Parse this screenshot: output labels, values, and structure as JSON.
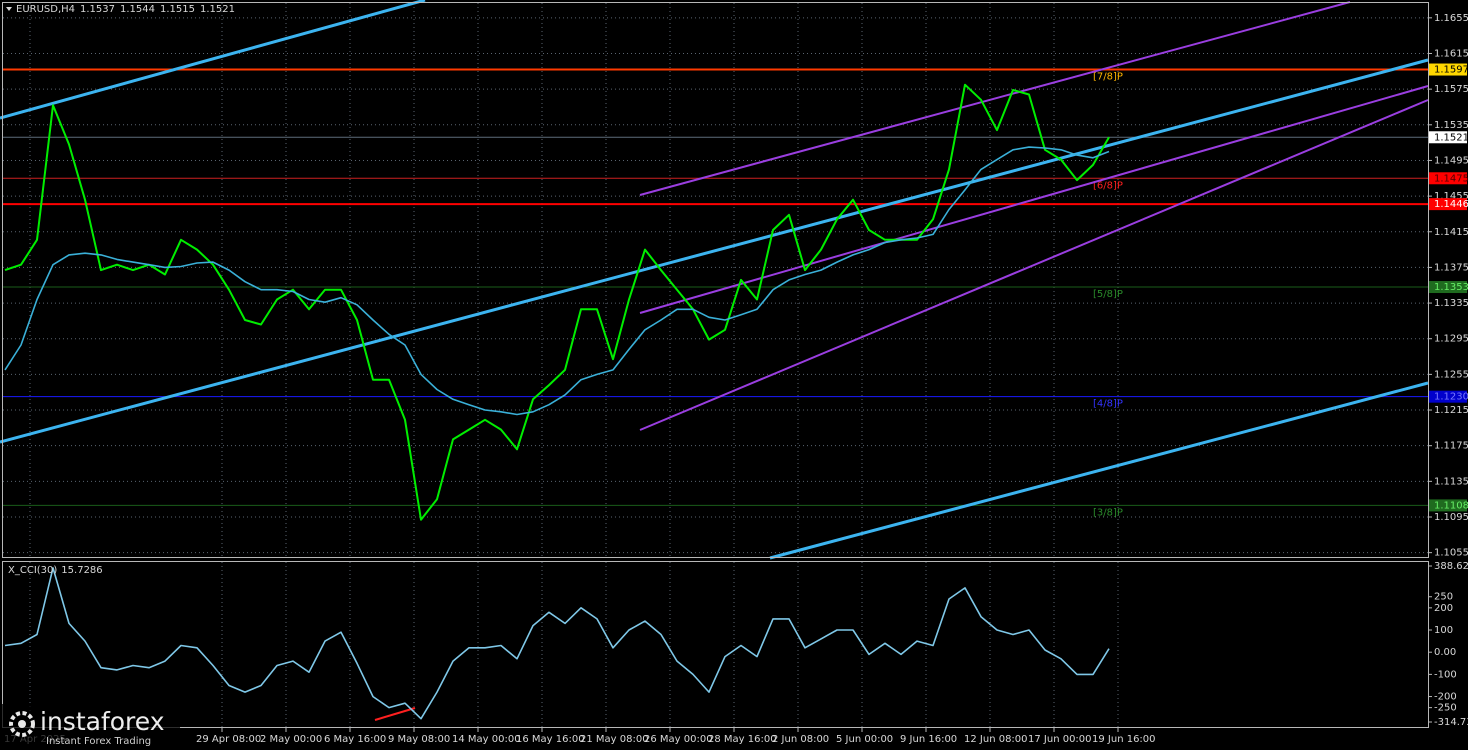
{
  "watermark": {
    "brand": "instaforex",
    "tagline": "Instant Forex Trading"
  },
  "chart_data": [
    {
      "type": "line",
      "title": "EURUSD,H4",
      "quote": [
        1.1537,
        1.1544,
        1.1515,
        1.1521
      ],
      "ylim": [
        1.1049,
        1.1675
      ],
      "yticks": [
        1.1655,
        1.1615,
        1.1575,
        1.1535,
        1.1495,
        1.1455,
        1.1415,
        1.1375,
        1.1335,
        1.1295,
        1.1255,
        1.1215,
        1.1175,
        1.1135,
        1.1095,
        1.1055
      ],
      "grid": true,
      "series": [
        {
          "color": "#00ee00",
          "values": [
            1.1372,
            1.1378,
            1.1406,
            1.1557,
            1.1513,
            1.1451,
            1.1372,
            1.1378,
            1.1372,
            1.1378,
            1.1367,
            1.1406,
            1.1395,
            1.1378,
            1.135,
            1.1316,
            1.1311,
            1.1339,
            1.135,
            1.1328,
            1.135,
            1.135,
            1.1316,
            1.1249,
            1.1249,
            1.1204,
            1.1092,
            1.1115,
            1.1182,
            1.1193,
            1.1204,
            1.1193,
            1.1171,
            1.1227,
            1.1243,
            1.126,
            1.1328,
            1.1328,
            1.1272,
            1.1339,
            1.1395,
            1.1372,
            1.135,
            1.1328,
            1.1294,
            1.1305,
            1.1361,
            1.1339,
            1.1417,
            1.1434,
            1.1372,
            1.1395,
            1.1429,
            1.1451,
            1.1417,
            1.1406,
            1.1406,
            1.1406,
            1.1429,
            1.1485,
            1.158,
            1.1563,
            1.1529,
            1.1574,
            1.1569,
            1.1507,
            1.1496,
            1.1473,
            1.149,
            1.1521
          ]
        },
        {
          "color": "#3ab0d8",
          "values": [
            1.126,
            1.1288,
            1.1339,
            1.1378,
            1.1389,
            1.1391,
            1.1389,
            1.1384,
            1.1381,
            1.1378,
            1.1375,
            1.1376,
            1.138,
            1.1381,
            1.1372,
            1.1359,
            1.135,
            1.135,
            1.1348,
            1.1339,
            1.1336,
            1.1341,
            1.1333,
            1.1316,
            1.13,
            1.1288,
            1.1255,
            1.1238,
            1.1227,
            1.1221,
            1.1215,
            1.1213,
            1.121,
            1.1213,
            1.1221,
            1.1232,
            1.1249,
            1.1255,
            1.126,
            1.1283,
            1.1305,
            1.1316,
            1.1328,
            1.1328,
            1.1319,
            1.1316,
            1.1322,
            1.1328,
            1.135,
            1.1361,
            1.1367,
            1.1372,
            1.1381,
            1.1389,
            1.1395,
            1.1403,
            1.1406,
            1.1408,
            1.1412,
            1.144,
            1.1462,
            1.1485,
            1.1496,
            1.1507,
            1.151,
            1.1509,
            1.1507,
            1.1501,
            1.1498,
            1.1505
          ]
        }
      ],
      "levels": [
        {
          "value": 1.1597,
          "value_label": "1.1597",
          "color": "#ff3a00",
          "thick": true,
          "box": "#ffd700",
          "box_text": "#000000",
          "murray": "[7/8]P",
          "murray_color": "#ffb400"
        },
        {
          "value": 1.1521,
          "value_label": "1.1521",
          "color": "#5e6c7a",
          "thick": false,
          "box": "#ffffff",
          "box_text": "#000000"
        },
        {
          "value": 1.1475,
          "value_label": "1.1475",
          "color": "#cc2020",
          "thick": false,
          "box": "#ff0000",
          "box_text": "#500000",
          "murray": "[6/8]P",
          "murray_color": "#ff2020"
        },
        {
          "value": 1.1446,
          "value_label": "1.1446",
          "color": "#ff0000",
          "thick": true,
          "box": "#ff0000",
          "box_text": "#ffffff"
        },
        {
          "value": 1.1353,
          "value_label": "1.1353",
          "color": "#1a5c1a",
          "thick": false,
          "box": "#1f6b1f",
          "box_text": "#66ee66",
          "murray": "[5/8]P",
          "murray_color": "#2a8a2a"
        },
        {
          "value": 1.123,
          "value_label": "1.1230",
          "color": "#1a1aff",
          "thick": false,
          "box": "#0000cc",
          "box_text": "#7777ff",
          "murray": "[4/8]P",
          "murray_color": "#3333ff"
        },
        {
          "value": 1.1108,
          "value_label": "1.1108",
          "color": "#1a5c1a",
          "thick": false,
          "box": "#1f6b1f",
          "box_text": "#66ee66",
          "murray": "[3/8]P",
          "murray_color": "#2a8a2a"
        }
      ],
      "x_labels": [
        "17 Apr 2025",
        "29 Apr 08:00",
        "2 May 00:00",
        "6 May 16:00",
        "9 May 08:00",
        "14 May 00:00",
        "16 May 16:00",
        "21 May 08:00",
        "26 May 00:00",
        "28 May 16:00",
        "2 Jun 08:00",
        "5 Jun 00:00",
        "9 Jun 16:00",
        "12 Jun 08:00",
        "17 Jun 00:00",
        "19 Jun 16:00"
      ]
    },
    {
      "type": "line",
      "title": "X_CCI(30)",
      "last": 15.7286,
      "ylim": [
        -314.7348,
        388.6237
      ],
      "yticks": [
        388.6237,
        250,
        200,
        100,
        {
          "value": 0,
          "label": "0.00"
        },
        -100,
        -200,
        -250,
        -314.7348
      ],
      "series": [
        {
          "color": "#7fc8e8",
          "values": [
            30,
            40,
            80,
            380,
            130,
            50,
            -70,
            -80,
            -60,
            -70,
            -40,
            30,
            20,
            -60,
            -150,
            -180,
            -150,
            -60,
            -40,
            -90,
            50,
            90,
            -50,
            -200,
            -250,
            -230,
            -300,
            -180,
            -40,
            20,
            20,
            30,
            -30,
            120,
            180,
            130,
            200,
            150,
            20,
            100,
            140,
            80,
            -40,
            -100,
            -180,
            -20,
            30,
            -20,
            150,
            150,
            20,
            60,
            100,
            100,
            -10,
            40,
            -10,
            50,
            30,
            240,
            290,
            160,
            100,
            80,
            100,
            10,
            -30,
            -100,
            -100,
            15.7286
          ]
        }
      ]
    }
  ]
}
